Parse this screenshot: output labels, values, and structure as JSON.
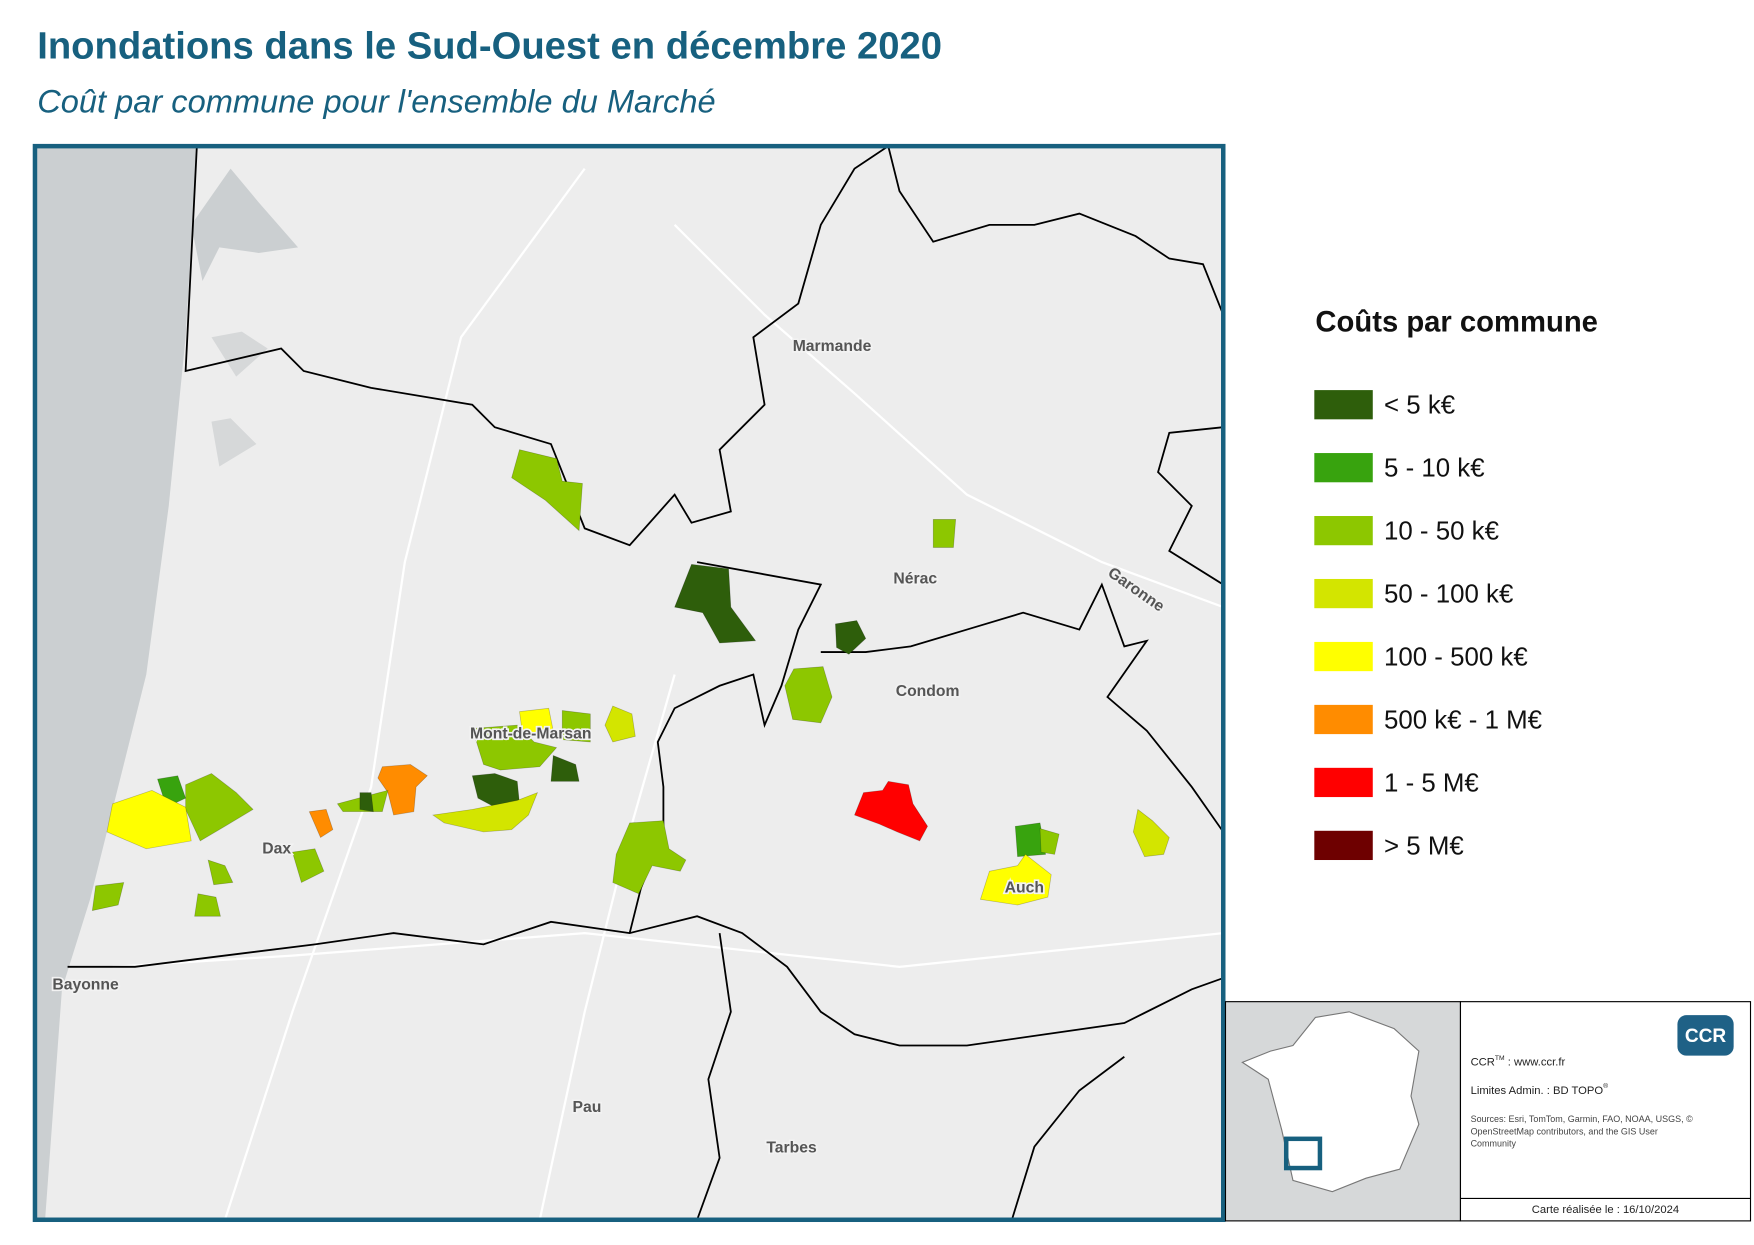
{
  "header": {
    "title": "Inondations dans le Sud-Ouest en décembre 2020",
    "subtitle": "Coût par commune pour l'ensemble du Marché"
  },
  "legend": {
    "title": "Coûts par commune",
    "items": [
      {
        "label": "< 5 k€",
        "color": "#2e5e0b"
      },
      {
        "label": "5 - 10 k€",
        "color": "#38a30e"
      },
      {
        "label": "10 - 50 k€",
        "color": "#8dc700"
      },
      {
        "label": "50 - 100 k€",
        "color": "#d3e500"
      },
      {
        "label": "100 - 500 k€",
        "color": "#ffff00"
      },
      {
        "label": "500 k€ - 1 M€",
        "color": "#ff8c00"
      },
      {
        "label": "1 - 5 M€",
        "color": "#ff0000"
      },
      {
        "label": "> 5 M€",
        "color": "#6e0000"
      }
    ]
  },
  "places": [
    "Marmande",
    "Nérac",
    "Condom",
    "Mont-de-Marsan",
    "Dax",
    "Auch",
    "Bayonne",
    "Pau",
    "Tarbes",
    "Garonne"
  ],
  "credits": {
    "logo": "CCR",
    "site_name": "CCR",
    "site_mark": "TM",
    "site": " : www.ccr.fr",
    "limits": "Limites Admin. : BD TOPO",
    "limits_mark": "®",
    "sources": [
      "Sources: Esri, TomTom, Garmin, FAO, NOAA, USGS, ©",
      "OpenStreetMap contributors, and the GIS User",
      "Community"
    ],
    "date": "Carte réalisée le : 16/10/2024"
  }
}
